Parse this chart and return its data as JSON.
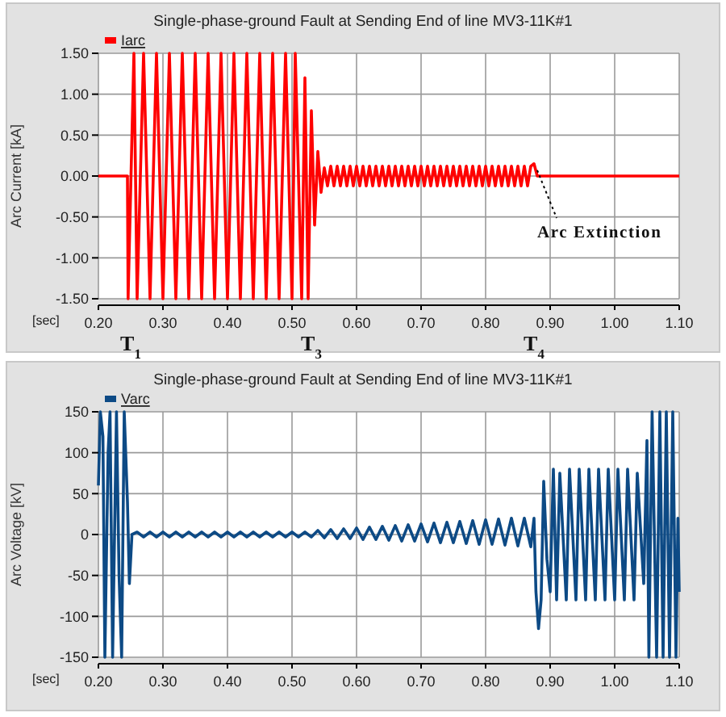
{
  "chart_data": [
    {
      "type": "line",
      "title": "Single-phase-ground Fault at Sending End of line MV3-11K#1",
      "xlabel": "[sec]",
      "ylabel": "Arc Current [kA]",
      "legend": "top left",
      "grid": true,
      "xlim": [
        0.2,
        1.1
      ],
      "xticks": [
        {
          "value": 0.2,
          "label": "0.20"
        },
        {
          "value": 0.3,
          "label": "0.30"
        },
        {
          "value": 0.4,
          "label": "0.40"
        },
        {
          "value": 0.5,
          "label": "0.50"
        },
        {
          "value": 0.6,
          "label": "0.60"
        },
        {
          "value": 0.7,
          "label": "0.70"
        },
        {
          "value": 0.8,
          "label": "0.80"
        },
        {
          "value": 0.9,
          "label": "0.90"
        },
        {
          "value": 1.0,
          "label": "1.00"
        },
        {
          "value": 1.1,
          "label": "1.10"
        }
      ],
      "ylim": [
        -1.5,
        1.5
      ],
      "yticks": [
        {
          "value": -1.5,
          "label": "-1.50"
        },
        {
          "value": -1,
          "label": "-1.00"
        },
        {
          "value": -0.5,
          "label": "-0.50"
        },
        {
          "value": 0,
          "label": "0.00"
        },
        {
          "value": 0.5,
          "label": "0.50"
        },
        {
          "value": 1,
          "label": "1.00"
        },
        {
          "value": 1.5,
          "label": "1.50"
        }
      ],
      "annotations": [
        "T$_{1}$",
        "T$_{3}$",
        "T$_{4}$",
        {
          "text": "Arc Extinction",
          "x": 0.875,
          "y": 0.15
        }
      ],
      "series": [
        {
          "name": "Iarc",
          "color": "#ff0000",
          "x": [
            0.2,
            0.245,
            0.246,
            0.255,
            0.26,
            0.27,
            0.28,
            0.29,
            0.3,
            0.31,
            0.32,
            0.33,
            0.34,
            0.35,
            0.36,
            0.37,
            0.38,
            0.39,
            0.4,
            0.41,
            0.42,
            0.43,
            0.44,
            0.45,
            0.46,
            0.47,
            0.48,
            0.49,
            0.5,
            0.505,
            0.515,
            0.52,
            0.525,
            0.53,
            0.535,
            0.54,
            0.545,
            0.55,
            0.555,
            0.56,
            0.565,
            0.57,
            0.575,
            0.58,
            0.585,
            0.59,
            0.595,
            0.6,
            0.605,
            0.61,
            0.615,
            0.62,
            0.625,
            0.63,
            0.635,
            0.64,
            0.645,
            0.65,
            0.655,
            0.66,
            0.665,
            0.67,
            0.675,
            0.68,
            0.685,
            0.69,
            0.695,
            0.7,
            0.705,
            0.71,
            0.715,
            0.72,
            0.725,
            0.73,
            0.735,
            0.74,
            0.745,
            0.75,
            0.755,
            0.76,
            0.765,
            0.77,
            0.775,
            0.78,
            0.785,
            0.79,
            0.795,
            0.8,
            0.805,
            0.81,
            0.815,
            0.82,
            0.825,
            0.83,
            0.835,
            0.84,
            0.845,
            0.85,
            0.855,
            0.86,
            0.865,
            0.87,
            0.875,
            0.88,
            1.1
          ],
          "values": [
            0,
            0,
            -1.5,
            1.5,
            -1.5,
            1.5,
            -1.5,
            1.5,
            -1.5,
            1.5,
            -1.5,
            1.5,
            -1.5,
            1.5,
            -1.5,
            1.5,
            -1.5,
            1.5,
            -1.5,
            1.5,
            -1.5,
            1.5,
            -1.5,
            1.5,
            -1.5,
            1.5,
            -1.5,
            1.5,
            -1.5,
            1.5,
            -1.5,
            1.2,
            -1.5,
            0.8,
            -0.6,
            0.3,
            -0.2,
            0.1,
            -0.12,
            0.12,
            -0.12,
            0.12,
            -0.12,
            0.12,
            -0.12,
            0.12,
            -0.12,
            0.12,
            -0.12,
            0.12,
            -0.12,
            0.12,
            -0.12,
            0.12,
            -0.12,
            0.12,
            -0.12,
            0.12,
            -0.12,
            0.12,
            -0.12,
            0.12,
            -0.12,
            0.12,
            -0.12,
            0.12,
            -0.12,
            0.12,
            -0.12,
            0.12,
            -0.12,
            0.12,
            -0.12,
            0.12,
            -0.12,
            0.12,
            -0.12,
            0.12,
            -0.12,
            0.12,
            -0.12,
            0.12,
            -0.12,
            0.12,
            -0.12,
            0.12,
            -0.12,
            0.12,
            -0.12,
            0.12,
            -0.12,
            0.12,
            -0.12,
            0.12,
            -0.12,
            0.12,
            -0.12,
            0.12,
            -0.12,
            0.12,
            -0.12,
            0.12,
            0.15,
            0,
            0
          ]
        }
      ]
    },
    {
      "type": "line",
      "title": "Single-phase-ground Fault at Sending End of line MV3-11K#1",
      "xlabel": "[sec]",
      "ylabel": "Arc Voltage [kV]",
      "legend": "top left",
      "grid": true,
      "xlim": [
        0.2,
        1.1
      ],
      "xticks": [
        {
          "value": 0.2,
          "label": "0.20"
        },
        {
          "value": 0.3,
          "label": "0.30"
        },
        {
          "value": 0.4,
          "label": "0.40"
        },
        {
          "value": 0.5,
          "label": "0.50"
        },
        {
          "value": 0.6,
          "label": "0.60"
        },
        {
          "value": 0.7,
          "label": "0.70"
        },
        {
          "value": 0.8,
          "label": "0.80"
        },
        {
          "value": 0.9,
          "label": "0.90"
        },
        {
          "value": 1.0,
          "label": "1.00"
        },
        {
          "value": 1.1,
          "label": "1.10"
        }
      ],
      "ylim": [
        -150,
        150
      ],
      "yticks": [
        -150,
        -100,
        -50,
        0,
        50,
        100,
        150
      ],
      "series": [
        {
          "name": "Varc",
          "color": "#0d4a85",
          "x": [
            0.2,
            0.203,
            0.207,
            0.21,
            0.215,
            0.218,
            0.222,
            0.228,
            0.232,
            0.236,
            0.24,
            0.245,
            0.248,
            0.252,
            0.26,
            0.27,
            0.28,
            0.29,
            0.3,
            0.31,
            0.32,
            0.33,
            0.34,
            0.35,
            0.36,
            0.37,
            0.38,
            0.39,
            0.4,
            0.41,
            0.42,
            0.43,
            0.44,
            0.45,
            0.46,
            0.47,
            0.48,
            0.49,
            0.5,
            0.51,
            0.52,
            0.53,
            0.54,
            0.55,
            0.56,
            0.57,
            0.58,
            0.59,
            0.6,
            0.61,
            0.62,
            0.63,
            0.64,
            0.65,
            0.66,
            0.67,
            0.68,
            0.69,
            0.7,
            0.71,
            0.72,
            0.73,
            0.74,
            0.75,
            0.76,
            0.77,
            0.78,
            0.79,
            0.8,
            0.81,
            0.82,
            0.83,
            0.84,
            0.85,
            0.86,
            0.87,
            0.875,
            0.878,
            0.882,
            0.886,
            0.89,
            0.895,
            0.9,
            0.905,
            0.91,
            0.915,
            0.925,
            0.93,
            0.94,
            0.945,
            0.955,
            0.96,
            0.97,
            0.975,
            0.985,
            0.99,
            1.0,
            1.005,
            1.015,
            1.02,
            1.03,
            1.035,
            1.045,
            1.05,
            1.053,
            1.058,
            1.065,
            1.07,
            1.075,
            1.08,
            1.085,
            1.09,
            1.095,
            1.098,
            1.1
          ],
          "values": [
            60,
            150,
            120,
            -150,
            100,
            150,
            -150,
            150,
            -50,
            -150,
            150,
            40,
            -60,
            0,
            3,
            -3,
            3,
            -3,
            3,
            -3,
            3,
            -3,
            3,
            -3,
            3,
            -3,
            3,
            -3,
            3,
            -3,
            3,
            -3,
            3,
            -3,
            3,
            -3,
            3,
            -3,
            3,
            -3,
            3,
            -3,
            5,
            -4,
            6,
            -5,
            7,
            -5,
            8,
            -6,
            9,
            -6,
            10,
            -7,
            11,
            -8,
            12,
            -8,
            13,
            -9,
            14,
            -10,
            15,
            -10,
            16,
            -11,
            17,
            -12,
            18,
            -12,
            19,
            -13,
            20,
            -14,
            20,
            -15,
            20,
            -70,
            -115,
            -80,
            65,
            -30,
            -70,
            80,
            -80,
            75,
            -80,
            80,
            -80,
            80,
            -80,
            80,
            -80,
            80,
            -80,
            80,
            -80,
            80,
            -80,
            80,
            -80,
            75,
            -60,
            115,
            -150,
            150,
            -150,
            150,
            -150,
            150,
            -150,
            150,
            -150,
            20,
            -70
          ]
        }
      ]
    }
  ]
}
